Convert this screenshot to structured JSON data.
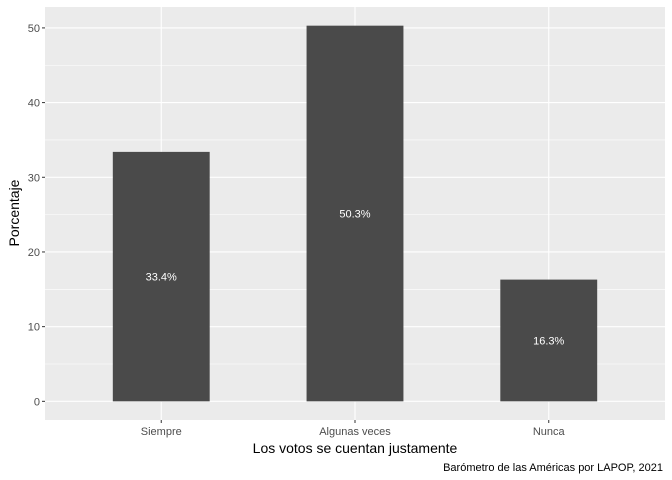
{
  "chart_data": {
    "type": "bar",
    "categories": [
      "Siempre",
      "Algunas veces",
      "Nunca"
    ],
    "values": [
      33.4,
      50.3,
      16.3
    ],
    "data_labels": [
      "33.4%",
      "50.3%",
      "16.3%"
    ],
    "xlabel": "Los votos se cuentan justamente",
    "ylabel": "Porcentaje",
    "caption": "Barómetro de las Américas por LAPOP, 2021",
    "ylim": [
      -2.5,
      52.8
    ],
    "yticks": [
      0,
      10,
      20,
      30,
      40,
      50
    ],
    "grid": true,
    "colors": {
      "bar": "#4a4a4a",
      "panel": "#ebebeb",
      "grid": "#ffffff"
    }
  }
}
